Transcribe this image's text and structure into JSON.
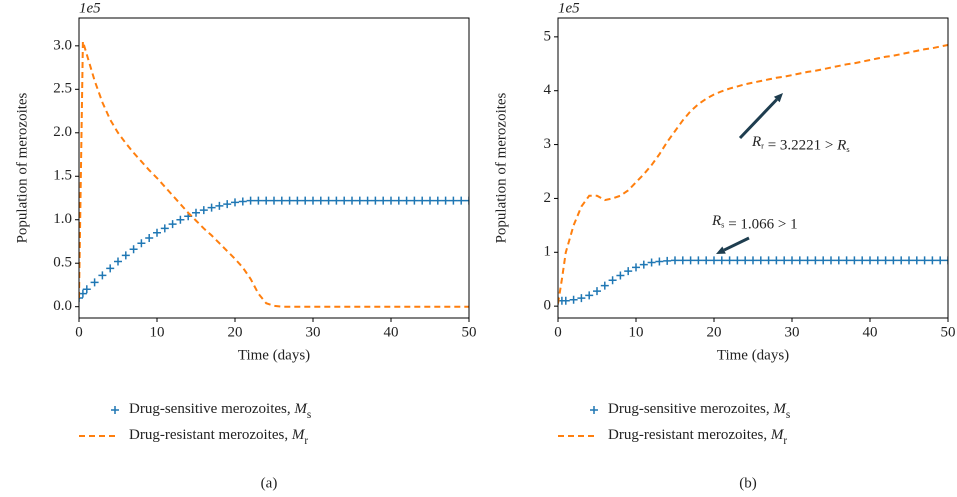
{
  "chart_data": [
    {
      "type": "line",
      "label": "(a)",
      "offset_text": "1e5",
      "x_label": "Time (days)",
      "y_label": "Population of merozoites",
      "xlim": [
        0,
        50
      ],
      "xticks": [
        0,
        10,
        20,
        30,
        40,
        50
      ],
      "ylim": [
        -0.13,
        3.32
      ],
      "yticks": [
        {
          "value": 0,
          "label": "0.0"
        },
        {
          "value": 0.5,
          "label": "0.5"
        },
        {
          "value": 1,
          "label": "1.0"
        },
        {
          "value": 1.5,
          "label": "1.5"
        },
        {
          "value": 2,
          "label": "2.0"
        },
        {
          "value": 2.5,
          "label": "2.5"
        },
        {
          "value": 3,
          "label": "3.0"
        }
      ],
      "x": [
        0,
        0.5,
        1,
        2,
        3,
        4,
        5,
        6,
        7,
        8,
        9,
        10,
        11,
        12,
        13,
        14,
        15,
        16,
        17,
        18,
        19,
        20,
        21,
        22,
        23,
        24,
        25,
        26,
        27,
        28,
        29,
        30,
        31,
        32,
        33,
        34,
        35,
        36,
        37,
        38,
        39,
        40,
        41,
        42,
        43,
        44,
        45,
        46,
        47,
        48,
        49,
        50
      ],
      "series": [
        {
          "name": "Drug-sensitive merozoites, Ms",
          "color": "#1f77b4",
          "marker": "+",
          "values": [
            0.1,
            0.15,
            0.2,
            0.28,
            0.36,
            0.44,
            0.52,
            0.59,
            0.66,
            0.73,
            0.79,
            0.85,
            0.9,
            0.95,
            1.0,
            1.04,
            1.08,
            1.11,
            1.14,
            1.16,
            1.18,
            1.2,
            1.21,
            1.22,
            1.22,
            1.22,
            1.22,
            1.22,
            1.22,
            1.22,
            1.22,
            1.22,
            1.22,
            1.22,
            1.22,
            1.22,
            1.22,
            1.22,
            1.22,
            1.22,
            1.22,
            1.22,
            1.22,
            1.22,
            1.22,
            1.22,
            1.22,
            1.22,
            1.22,
            1.22,
            1.22,
            1.22
          ]
        },
        {
          "name": "Drug-resistant merozoites, Mr",
          "color": "#ff7f0e",
          "marker": "dashed",
          "values": [
            0.1,
            3.05,
            2.9,
            2.6,
            2.35,
            2.15,
            2.0,
            1.88,
            1.77,
            1.67,
            1.57,
            1.48,
            1.38,
            1.28,
            1.18,
            1.08,
            0.99,
            0.9,
            0.82,
            0.73,
            0.64,
            0.55,
            0.45,
            0.32,
            0.15,
            0.04,
            0.01,
            0,
            0,
            0,
            0,
            0,
            0,
            0,
            0,
            0,
            0,
            0,
            0,
            0,
            0,
            0,
            0,
            0,
            0,
            0,
            0,
            0,
            0,
            0,
            0,
            0
          ]
        }
      ]
    },
    {
      "type": "line",
      "label": "(b)",
      "offset_text": "1e5",
      "x_label": "Time (days)",
      "y_label": "Population of merozoites",
      "xlim": [
        0,
        50
      ],
      "xticks": [
        0,
        10,
        20,
        30,
        40,
        50
      ],
      "ylim": [
        -0.22,
        5.35
      ],
      "yticks": [
        0,
        1,
        2,
        3,
        4,
        5
      ],
      "x": [
        0,
        0.5,
        1,
        2,
        3,
        4,
        5,
        6,
        7,
        8,
        9,
        10,
        11,
        12,
        13,
        14,
        15,
        16,
        17,
        18,
        19,
        20,
        21,
        22,
        23,
        24,
        25,
        26,
        27,
        28,
        29,
        30,
        31,
        32,
        33,
        34,
        35,
        36,
        37,
        38,
        39,
        40,
        41,
        42,
        43,
        44,
        45,
        46,
        47,
        48,
        49,
        50
      ],
      "series": [
        {
          "name": "Drug-sensitive merozoites, Ms",
          "color": "#1f77b4",
          "marker": "+",
          "values": [
            0.1,
            0.1,
            0.1,
            0.12,
            0.15,
            0.2,
            0.28,
            0.38,
            0.48,
            0.57,
            0.65,
            0.72,
            0.77,
            0.81,
            0.83,
            0.84,
            0.85,
            0.85,
            0.85,
            0.85,
            0.85,
            0.85,
            0.85,
            0.85,
            0.85,
            0.85,
            0.85,
            0.85,
            0.85,
            0.85,
            0.85,
            0.85,
            0.85,
            0.85,
            0.85,
            0.85,
            0.85,
            0.85,
            0.85,
            0.85,
            0.85,
            0.85,
            0.85,
            0.85,
            0.85,
            0.85,
            0.85,
            0.85,
            0.85,
            0.85,
            0.85,
            0.85
          ]
        },
        {
          "name": "Drug-resistant merozoites, Mr",
          "color": "#ff7f0e",
          "marker": "dashed",
          "values": [
            0.05,
            0.5,
            1.0,
            1.5,
            1.85,
            2.05,
            2.05,
            1.97,
            2.0,
            2.05,
            2.15,
            2.3,
            2.45,
            2.62,
            2.82,
            3.05,
            3.25,
            3.45,
            3.62,
            3.75,
            3.85,
            3.93,
            3.99,
            4.04,
            4.08,
            4.12,
            4.15,
            4.18,
            4.21,
            4.24,
            4.26,
            4.29,
            4.32,
            4.35,
            4.37,
            4.4,
            4.43,
            4.46,
            4.49,
            4.51,
            4.54,
            4.57,
            4.6,
            4.63,
            4.65,
            4.68,
            4.71,
            4.74,
            4.77,
            4.79,
            4.82,
            4.85
          ]
        }
      ],
      "annotations": [
        "Rr = 3.2221 > Rs",
        "Rs = 1.066 > 1"
      ]
    }
  ]
}
